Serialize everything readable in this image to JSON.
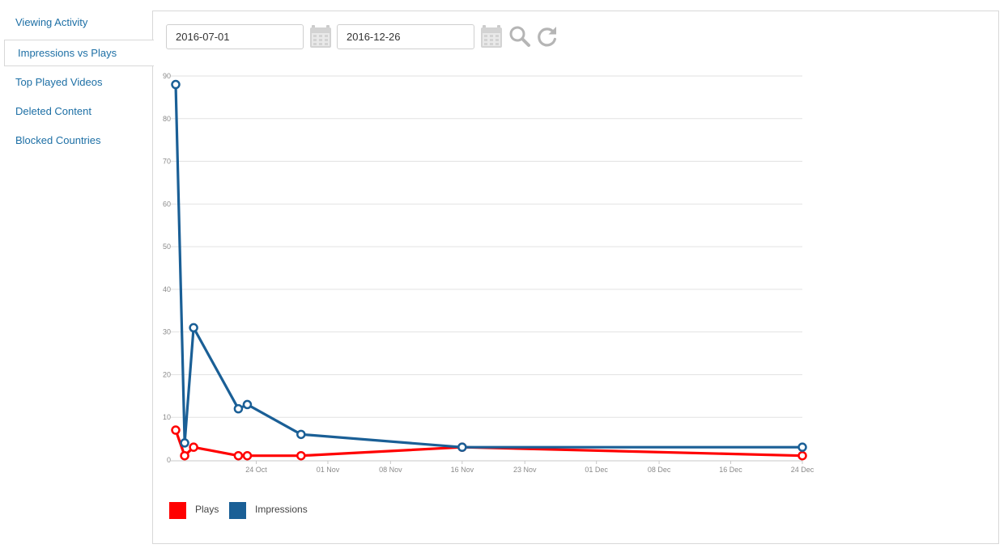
{
  "sidebar": {
    "items": [
      {
        "label": "Viewing Activity",
        "active": false
      },
      {
        "label": "Impressions vs Plays",
        "active": true
      },
      {
        "label": "Top Played Videos",
        "active": false
      },
      {
        "label": "Deleted Content",
        "active": false
      },
      {
        "label": "Blocked Countries",
        "active": false
      }
    ]
  },
  "filters": {
    "start_date": "2016-07-01",
    "end_date": "2016-12-26",
    "icons": [
      "calendar-icon",
      "calendar-icon",
      "search-icon",
      "refresh-icon"
    ]
  },
  "chart_data": {
    "type": "line",
    "ylim": [
      0,
      90
    ],
    "yticks": [
      0,
      10,
      20,
      30,
      40,
      50,
      60,
      70,
      80,
      90
    ],
    "xlim": [
      "2016-10-15",
      "2016-12-24"
    ],
    "xticks": [
      {
        "date": "2016-10-24",
        "label": "24 Oct"
      },
      {
        "date": "2016-11-01",
        "label": "01 Nov"
      },
      {
        "date": "2016-11-08",
        "label": "08 Nov"
      },
      {
        "date": "2016-11-16",
        "label": "16 Nov"
      },
      {
        "date": "2016-11-23",
        "label": "23 Nov"
      },
      {
        "date": "2016-12-01",
        "label": "01 Dec"
      },
      {
        "date": "2016-12-08",
        "label": "08 Dec"
      },
      {
        "date": "2016-12-16",
        "label": "16 Dec"
      },
      {
        "date": "2016-12-24",
        "label": "24 Dec"
      }
    ],
    "grid": true,
    "legend_position": "bottom-left",
    "series": [
      {
        "name": "Plays",
        "color": "#ff0000",
        "points": [
          {
            "x": "2016-10-15",
            "y": 7
          },
          {
            "x": "2016-10-16",
            "y": 1
          },
          {
            "x": "2016-10-17",
            "y": 3
          },
          {
            "x": "2016-10-22",
            "y": 1
          },
          {
            "x": "2016-10-23",
            "y": 1
          },
          {
            "x": "2016-10-29",
            "y": 1
          },
          {
            "x": "2016-11-16",
            "y": 3
          },
          {
            "x": "2016-12-24",
            "y": 1
          }
        ]
      },
      {
        "name": "Impressions",
        "color": "#1a5f96",
        "points": [
          {
            "x": "2016-10-15",
            "y": 88
          },
          {
            "x": "2016-10-16",
            "y": 4
          },
          {
            "x": "2016-10-17",
            "y": 31
          },
          {
            "x": "2016-10-22",
            "y": 12
          },
          {
            "x": "2016-10-23",
            "y": 13
          },
          {
            "x": "2016-10-29",
            "y": 6
          },
          {
            "x": "2016-11-16",
            "y": 3
          },
          {
            "x": "2016-12-24",
            "y": 3
          }
        ]
      }
    ]
  }
}
